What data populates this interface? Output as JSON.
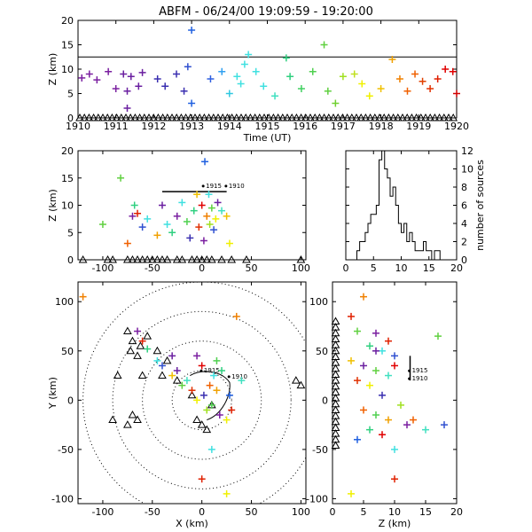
{
  "title": "ABFM - 06/24/00 19:09:59 - 19:20:00",
  "chart_data": [
    {
      "id": "time-height",
      "type": "scatter",
      "xlabel": "Time (UT)",
      "ylabel": "Z (km)",
      "xlim": [
        1910,
        1920
      ],
      "ylim": [
        0,
        20
      ],
      "xticks": [
        "1910",
        "1911",
        "1912",
        "1913",
        "1914",
        "1915",
        "1916",
        "1917",
        "1918",
        "1919",
        "1920"
      ],
      "yticks": [
        "0",
        "5",
        "10",
        "15",
        "20"
      ],
      "reference_line_y": 12.5,
      "points": [
        [
          1910.1,
          8.2,
          "#7a1fa0"
        ],
        [
          1910.3,
          9.0,
          "#7a1fa0"
        ],
        [
          1910.5,
          7.8,
          "#7a1fa0"
        ],
        [
          1910.8,
          9.5,
          "#7a1fa0"
        ],
        [
          1911.0,
          6.0,
          "#7a1fa0"
        ],
        [
          1911.2,
          9.0,
          "#6a1fa0"
        ],
        [
          1911.3,
          5.5,
          "#6a1fa0"
        ],
        [
          1911.3,
          2.0,
          "#6a1fa0"
        ],
        [
          1911.4,
          8.5,
          "#6a1fa0"
        ],
        [
          1911.6,
          6.5,
          "#6a1fa0"
        ],
        [
          1911.7,
          9.3,
          "#6a1fa0"
        ],
        [
          1912.1,
          8.0,
          "#3a2fb0"
        ],
        [
          1912.3,
          6.5,
          "#3a2fb0"
        ],
        [
          1912.6,
          9.0,
          "#3a2fb0"
        ],
        [
          1912.8,
          5.5,
          "#3a2fb0"
        ],
        [
          1912.9,
          10.5,
          "#3050d0"
        ],
        [
          1913.0,
          18.0,
          "#2060e0"
        ],
        [
          1913.0,
          3.0,
          "#2060e0"
        ],
        [
          1913.5,
          8.0,
          "#3060e0"
        ],
        [
          1913.8,
          9.5,
          "#30a0f0"
        ],
        [
          1914.0,
          5.0,
          "#30c8e0"
        ],
        [
          1914.2,
          8.5,
          "#40e0e0"
        ],
        [
          1914.3,
          7.0,
          "#40e0e0"
        ],
        [
          1914.4,
          11.0,
          "#40e0e0"
        ],
        [
          1914.5,
          13.0,
          "#40e0e0"
        ],
        [
          1914.7,
          9.5,
          "#40e0e0"
        ],
        [
          1914.9,
          6.5,
          "#40e0e0"
        ],
        [
          1915.2,
          4.5,
          "#40e0c0"
        ],
        [
          1915.5,
          12.3,
          "#30d080"
        ],
        [
          1915.6,
          8.5,
          "#30d080"
        ],
        [
          1915.9,
          6.0,
          "#40d060"
        ],
        [
          1916.2,
          9.5,
          "#50d050"
        ],
        [
          1916.5,
          15.0,
          "#60d040"
        ],
        [
          1916.6,
          5.5,
          "#60d040"
        ],
        [
          1916.8,
          3.0,
          "#70d030"
        ],
        [
          1917.0,
          8.5,
          "#a0e020"
        ],
        [
          1917.3,
          9.0,
          "#c0e020"
        ],
        [
          1917.5,
          7.0,
          "#f0f000"
        ],
        [
          1917.7,
          4.5,
          "#f0f000"
        ],
        [
          1918.0,
          6.0,
          "#f0c000"
        ],
        [
          1918.3,
          12.0,
          "#f0a000"
        ],
        [
          1918.5,
          8.0,
          "#f08000"
        ],
        [
          1918.7,
          5.5,
          "#f06000"
        ],
        [
          1918.9,
          9.0,
          "#f06000"
        ],
        [
          1919.1,
          7.5,
          "#e04000"
        ],
        [
          1919.3,
          6.0,
          "#e03000"
        ],
        [
          1919.5,
          8.0,
          "#e02000"
        ],
        [
          1919.7,
          10.0,
          "#e00000"
        ],
        [
          1919.9,
          9.5,
          "#e00000"
        ],
        [
          1920.0,
          5.0,
          "#d00000"
        ]
      ],
      "stations_z0": true
    },
    {
      "id": "x-height",
      "type": "scatter",
      "xlabel": "",
      "ylabel": "Z (km)",
      "xlim": [
        -125,
        105
      ],
      "ylim": [
        0,
        20
      ],
      "xticks": [
        "-100",
        "-50",
        "0",
        "50",
        "100"
      ],
      "yticks": [
        "0",
        "5",
        "10",
        "15",
        "20"
      ],
      "annotations": [
        "1915",
        "1910"
      ],
      "points": [
        [
          -100,
          6.5,
          "#60d040"
        ],
        [
          -82,
          15.0,
          "#60d040"
        ],
        [
          -75,
          3.0,
          "#f06000"
        ],
        [
          -70,
          8.0,
          "#7a1fa0"
        ],
        [
          -68,
          10.0,
          "#30d080"
        ],
        [
          -65,
          8.5,
          "#e02000"
        ],
        [
          -60,
          6.0,
          "#3050d0"
        ],
        [
          -55,
          7.5,
          "#40e0e0"
        ],
        [
          -45,
          4.5,
          "#f0a000"
        ],
        [
          -40,
          10.0,
          "#6a1fa0"
        ],
        [
          -35,
          6.5,
          "#40e0e0"
        ],
        [
          -30,
          5.0,
          "#30d080"
        ],
        [
          -25,
          8.0,
          "#7a1fa0"
        ],
        [
          -20,
          10.5,
          "#40e0e0"
        ],
        [
          -15,
          7.0,
          "#50d050"
        ],
        [
          -12,
          4.0,
          "#3a2fb0"
        ],
        [
          -8,
          9.0,
          "#30d080"
        ],
        [
          -5,
          12.0,
          "#f0c000"
        ],
        [
          -3,
          6.0,
          "#e03000"
        ],
        [
          0,
          10.0,
          "#e00000"
        ],
        [
          2,
          3.5,
          "#7a1fa0"
        ],
        [
          3,
          18.0,
          "#2060e0"
        ],
        [
          5,
          8.0,
          "#f08000"
        ],
        [
          7,
          12.0,
          "#40e0e0"
        ],
        [
          8,
          6.5,
          "#a0e020"
        ],
        [
          10,
          9.5,
          "#60d040"
        ],
        [
          12,
          5.5,
          "#3050d0"
        ],
        [
          14,
          7.5,
          "#f0f000"
        ],
        [
          16,
          10.5,
          "#6a1fa0"
        ],
        [
          20,
          9.0,
          "#40e0c0"
        ],
        [
          25,
          8.0,
          "#f0c000"
        ],
        [
          28,
          3.0,
          "#f0f000"
        ]
      ]
    },
    {
      "id": "height-histogram",
      "type": "bar",
      "xlabel": "",
      "ylabel": "number of sources",
      "xlim": [
        0,
        20
      ],
      "ylim": [
        0,
        12
      ],
      "xticks": [
        "0",
        "5",
        "10",
        "15",
        "20"
      ],
      "yticks": [
        "0",
        "2",
        "4",
        "6",
        "8",
        "10",
        "12"
      ],
      "bin_width": 0.5,
      "bins_start": 2,
      "values": [
        1,
        2,
        2,
        3,
        4,
        5,
        5,
        6,
        11,
        12,
        10,
        9,
        7,
        8,
        6,
        4,
        3,
        4,
        2,
        3,
        2,
        1,
        1,
        1,
        2,
        1,
        1,
        0,
        1,
        1
      ]
    },
    {
      "id": "plan-view",
      "type": "scatter",
      "xlabel": "X (km)",
      "ylabel": "Y (km)",
      "xlim": [
        -125,
        105
      ],
      "ylim": [
        -105,
        120
      ],
      "xticks": [
        "-100",
        "-50",
        "0",
        "50",
        "100"
      ],
      "yticks": [
        "-100",
        "-50",
        "0",
        "50",
        "100"
      ],
      "annotations": [
        "1915",
        "1910"
      ],
      "range_rings_km": [
        30,
        60,
        90,
        120
      ],
      "stations": [
        [
          -75,
          70
        ],
        [
          -70,
          60
        ],
        [
          -72,
          50
        ],
        [
          -65,
          45
        ],
        [
          -62,
          55
        ],
        [
          -55,
          65
        ],
        [
          -45,
          50
        ],
        [
          -35,
          40
        ],
        [
          -85,
          25
        ],
        [
          -60,
          25
        ],
        [
          -40,
          25
        ],
        [
          -25,
          20
        ],
        [
          -70,
          -15
        ],
        [
          -75,
          -25
        ],
        [
          -65,
          -20
        ],
        [
          -90,
          -20
        ],
        [
          0,
          -25
        ],
        [
          5,
          -30
        ],
        [
          -5,
          -20
        ],
        [
          -10,
          5
        ],
        [
          10,
          -5
        ],
        [
          100,
          15
        ],
        [
          95,
          20
        ]
      ],
      "points": [
        [
          -120,
          105,
          "#f08000"
        ],
        [
          -65,
          70,
          "#7a1fa0"
        ],
        [
          -60,
          60,
          "#e02000"
        ],
        [
          -55,
          52,
          "#30d080"
        ],
        [
          -45,
          40,
          "#40e0e0"
        ],
        [
          -40,
          35,
          "#3050d0"
        ],
        [
          -30,
          25,
          "#f0c000"
        ],
        [
          -25,
          30,
          "#6a1fa0"
        ],
        [
          -20,
          15,
          "#60d040"
        ],
        [
          -15,
          20,
          "#40e0c0"
        ],
        [
          -10,
          10,
          "#e03000"
        ],
        [
          -5,
          0,
          "#f0f000"
        ],
        [
          0,
          35,
          "#e00000"
        ],
        [
          2,
          5,
          "#3a2fb0"
        ],
        [
          5,
          -10,
          "#a0e020"
        ],
        [
          8,
          15,
          "#f06000"
        ],
        [
          10,
          -5,
          "#50d050"
        ],
        [
          12,
          25,
          "#40e0e0"
        ],
        [
          15,
          10,
          "#f0a000"
        ],
        [
          18,
          -15,
          "#7a1fa0"
        ],
        [
          20,
          30,
          "#30d080"
        ],
        [
          25,
          -20,
          "#f0f000"
        ],
        [
          28,
          5,
          "#2060e0"
        ],
        [
          30,
          -10,
          "#e02000"
        ],
        [
          10,
          -50,
          "#40e0e0"
        ],
        [
          0,
          -80,
          "#e02000"
        ],
        [
          25,
          -95,
          "#f0f000"
        ],
        [
          35,
          85,
          "#f08000"
        ],
        [
          -30,
          45,
          "#6a1fa0"
        ],
        [
          -5,
          45,
          "#7a1fa0"
        ],
        [
          15,
          40,
          "#50d050"
        ],
        [
          40,
          20,
          "#40e0c0"
        ]
      ]
    },
    {
      "id": "height-y",
      "type": "scatter",
      "xlabel": "Z (km)",
      "ylabel": "",
      "xlim": [
        0,
        20
      ],
      "ylim": [
        -105,
        120
      ],
      "xticks": [
        "0",
        "5",
        "10",
        "15",
        "20"
      ],
      "yticks": [
        "-100",
        "-50",
        "0",
        "50",
        "100"
      ],
      "annotations": [
        "1915",
        "1910"
      ],
      "points": [
        [
          5,
          105,
          "#f08000"
        ],
        [
          3,
          85,
          "#e02000"
        ],
        [
          4,
          70,
          "#60d040"
        ],
        [
          7,
          68,
          "#7a1fa0"
        ],
        [
          9,
          60,
          "#e02000"
        ],
        [
          6,
          55,
          "#30d080"
        ],
        [
          8,
          50,
          "#40e0e0"
        ],
        [
          10,
          45,
          "#3050d0"
        ],
        [
          3,
          40,
          "#f0c000"
        ],
        [
          5,
          35,
          "#6a1fa0"
        ],
        [
          7,
          30,
          "#60d040"
        ],
        [
          9,
          25,
          "#40e0c0"
        ],
        [
          4,
          20,
          "#e03000"
        ],
        [
          6,
          15,
          "#f0f000"
        ],
        [
          10,
          35,
          "#e00000"
        ],
        [
          8,
          5,
          "#3a2fb0"
        ],
        [
          11,
          -5,
          "#a0e020"
        ],
        [
          5,
          -10,
          "#f06000"
        ],
        [
          7,
          -15,
          "#50d050"
        ],
        [
          9,
          -20,
          "#f0a000"
        ],
        [
          12,
          -25,
          "#7a1fa0"
        ],
        [
          6,
          -30,
          "#30d080"
        ],
        [
          4,
          -40,
          "#2060e0"
        ],
        [
          10,
          -50,
          "#40e0e0"
        ],
        [
          10,
          -80,
          "#e02000"
        ],
        [
          3,
          -95,
          "#f0f000"
        ],
        [
          18,
          -25,
          "#3050d0"
        ],
        [
          17,
          65,
          "#60d040"
        ],
        [
          13,
          -20,
          "#f06000"
        ],
        [
          8,
          -35,
          "#e00000"
        ],
        [
          15,
          -30,
          "#40e0c0"
        ],
        [
          7,
          50,
          "#6a1fa0"
        ]
      ],
      "stations_z0": true
    }
  ]
}
